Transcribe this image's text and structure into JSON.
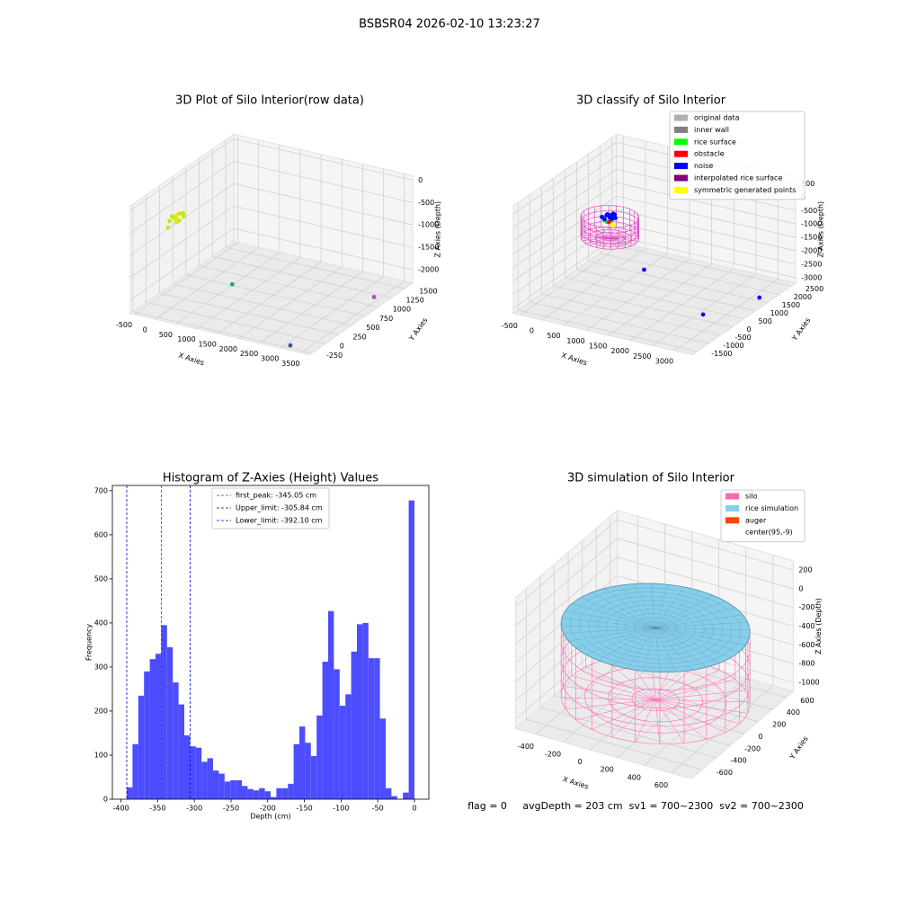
{
  "title": "BSBSR04 2026-02-10 13:23:27",
  "status": "flag = 0     avgDepth = 203 cm  sv1 = 700~2300  sv2 = 700~2300",
  "chart_data": [
    {
      "type": "scatter3d",
      "title": "3D Plot of Silo Interior(row data)",
      "xlabel": "X Axies",
      "ylabel": "Y Axies",
      "zlabel": "Z Axies (Depth)",
      "xlim": [
        -600,
        3700
      ],
      "ylim": [
        -300,
        1650
      ],
      "zlim": [
        -2300,
        100
      ],
      "xticks": [
        -500,
        0,
        500,
        1000,
        1500,
        2000,
        2500,
        3000,
        3500
      ],
      "yticks": [
        -250,
        0,
        250,
        500,
        750,
        1000,
        1250,
        1500
      ],
      "zticks": [
        -2000,
        -1500,
        -1000,
        -500,
        0
      ],
      "series": [
        {
          "color": "#c8e614",
          "x": [
            150,
            200,
            250,
            300,
            180,
            230,
            280,
            120,
            260
          ],
          "y": [
            -150,
            -100,
            -50,
            0,
            -200,
            -20,
            -120,
            -80,
            20
          ],
          "z": [
            -200,
            -150,
            -250,
            -180,
            -300,
            -120,
            -220,
            -160,
            -140
          ]
        },
        {
          "color": "#e8e619",
          "x": [
            210,
            260,
            170
          ],
          "y": [
            -60,
            -110,
            -30
          ],
          "z": [
            -130,
            -190,
            -240
          ]
        },
        {
          "color": "#19a974",
          "x": [
            830
          ],
          "y": [
            500
          ],
          "z": [
            -2000
          ]
        },
        {
          "color": "#3b4fa0",
          "x": [
            3230
          ],
          "y": [
            -290
          ],
          "z": [
            -2200
          ]
        },
        {
          "color": "#9b59b6",
          "x": [
            3600
          ],
          "y": [
            1000
          ],
          "z": [
            -2100
          ]
        }
      ]
    },
    {
      "type": "scatter3d",
      "title": "3D classify of Silo Interior",
      "xlabel": "X Axies",
      "ylabel": "Y Axies",
      "zlabel": "Z Axies (Depth)",
      "xlim": [
        -650,
        3400
      ],
      "ylim": [
        -1700,
        2700
      ],
      "zlim": [
        -3200,
        800
      ],
      "xticks": [
        -500,
        0,
        500,
        1000,
        1500,
        2000,
        2500,
        3000
      ],
      "yticks": [
        -1500,
        -1000,
        -500,
        0,
        500,
        1000,
        1500,
        2000,
        2500
      ],
      "zticks": [
        -3000,
        -2500,
        -2000,
        -1500,
        -1000,
        -500,
        0,
        500
      ],
      "series": [
        {
          "name": "original data",
          "color": "#b0b0b0",
          "x": [],
          "y": [],
          "z": []
        },
        {
          "name": "inner wall",
          "color": "#808080",
          "x": [],
          "y": [],
          "z": []
        },
        {
          "name": "rice surface",
          "color": "#00ff00",
          "x": [
            480,
            560
          ],
          "y": [
            150,
            230
          ],
          "z": [
            -480,
            -470
          ]
        },
        {
          "name": "obstacle",
          "color": "#ff0000",
          "x": [
            520
          ],
          "y": [
            180
          ],
          "z": [
            -500
          ]
        },
        {
          "name": "noise",
          "color": "#0000ff",
          "x": [
            400,
            450,
            500,
            550,
            600,
            650,
            430,
            520,
            610,
            480,
            570,
            960,
            2730,
            3270
          ],
          "y": [
            100,
            200,
            300,
            150,
            250,
            200,
            280,
            350,
            120,
            60,
            320,
            840,
            20,
            1400
          ],
          "z": [
            -300,
            -280,
            -320,
            -300,
            -290,
            -310,
            -300,
            -290,
            -300,
            -330,
            -280,
            -2500,
            -3000,
            -3000
          ]
        },
        {
          "name": "interpolated rice surface",
          "color": "#800080",
          "x": [],
          "y": [],
          "z": []
        },
        {
          "name": "symmetric generated points",
          "color": "#ffff00",
          "x": [
            620,
            650
          ],
          "y": [
            120,
            90
          ],
          "z": [
            -500,
            -520
          ]
        }
      ]
    },
    {
      "type": "histogram",
      "title": "Histogram of Z-Axies (Height) Values",
      "xlabel": "Depth (cm)",
      "ylabel": "Frequency",
      "color": "#4d4dff",
      "bins": [
        -392.1,
        -384.26,
        -376.42,
        -368.57,
        -360.73,
        -352.89,
        -345.05,
        -337.21,
        -329.36,
        -321.52,
        -313.68,
        -305.84,
        -298.0,
        -290.15,
        -282.31,
        -274.47,
        -266.63,
        -258.79,
        -250.94,
        -243.1,
        -235.26,
        -227.42,
        -219.58,
        -211.73,
        -203.89,
        -196.05,
        -188.21,
        -180.37,
        -172.52,
        -164.68,
        -156.84,
        -149.0,
        -141.16,
        -133.31,
        -125.47,
        -117.63,
        -109.79,
        -101.95,
        -94.1,
        -86.26,
        -78.42,
        -70.58,
        -62.74,
        -54.89,
        -47.05,
        -39.21,
        -31.37,
        -23.53,
        -15.68,
        -7.84,
        0.0
      ],
      "values": [
        27,
        125,
        235,
        290,
        318,
        330,
        395,
        345,
        265,
        215,
        145,
        120,
        117,
        85,
        93,
        65,
        58,
        40,
        43,
        43,
        30,
        23,
        20,
        25,
        18,
        5,
        25,
        25,
        35,
        125,
        165,
        128,
        98,
        190,
        312,
        427,
        295,
        212,
        238,
        335,
        397,
        400,
        320,
        320,
        183,
        25,
        7,
        0,
        15,
        678
      ],
      "xlim": [
        -411.7,
        19.6
      ],
      "ylim": [
        0,
        712
      ],
      "xticks": [
        -400,
        -350,
        -300,
        -250,
        -200,
        -150,
        -100,
        -50,
        0
      ],
      "yticks": [
        0,
        100,
        200,
        300,
        400,
        500,
        600,
        700
      ],
      "lines": [
        {
          "name": "first_peak: -345.05 cm",
          "value": -345.05,
          "color": "#ff0000"
        },
        {
          "name": "Upper_limit: -305.84 cm",
          "value": -305.84,
          "color": "#0000cc"
        },
        {
          "name": "Lower_limit: -392.10 cm",
          "value": -392.1,
          "color": "#0000cc"
        }
      ]
    },
    {
      "type": "surface3d",
      "title": "3D simulation of Silo Interior",
      "xlabel": "X Axies",
      "ylabel": "Y Axies",
      "zlabel": "Z Axies (Depth)",
      "xlim": [
        -550,
        750
      ],
      "ylim": [
        -750,
        700
      ],
      "zlim": [
        -1100,
        300
      ],
      "xticks": [
        -400,
        -200,
        0,
        200,
        400,
        600
      ],
      "yticks": [
        -600,
        -400,
        -200,
        0,
        200,
        400,
        600
      ],
      "zticks": [
        -1000,
        -800,
        -600,
        -400,
        -200,
        0,
        200
      ],
      "series": [
        {
          "name": "silo",
          "color": "#ff69b4"
        },
        {
          "name": "rice simulation",
          "color": "#87ceeb"
        },
        {
          "name": "auger",
          "color": "#ff4500"
        },
        {
          "name": "center(95,-9)",
          "color": "#ffffff"
        }
      ]
    }
  ]
}
